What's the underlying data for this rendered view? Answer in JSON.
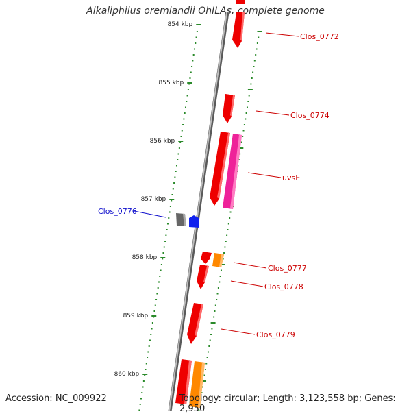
{
  "title": "Alkaliphilus oremlandii OhILAs, complete genome",
  "footer": {
    "accession": "Accession: NC_009922",
    "summary": "Topology: circular; Length: 3,123,558 bp; Genes: 2,950"
  },
  "colors": {
    "backbone": "#8c8c8c",
    "tick": "#2a8a2a",
    "minus_label": "#1010cc",
    "plus_label": "#cc0000",
    "gene_red": "#ee0000",
    "gene_pink": "#ee2299",
    "gene_orange": "#ff8800",
    "gene_gray": "#666666",
    "gene_blue": "#1122ee"
  },
  "scale_labels": [
    "854 kbp",
    "855 kbp",
    "856 kbp",
    "857 kbp",
    "858 kbp",
    "859 kbp",
    "860 kbp"
  ],
  "gene_labels": {
    "Clos_0772": "Clos_0772",
    "Clos_0774": "Clos_0774",
    "uvsE": "uvsE",
    "Clos_0776": "Clos_0776",
    "Clos_0777": "Clos_0777",
    "Clos_0778": "Clos_0778",
    "Clos_0779": "Clos_0779"
  }
}
